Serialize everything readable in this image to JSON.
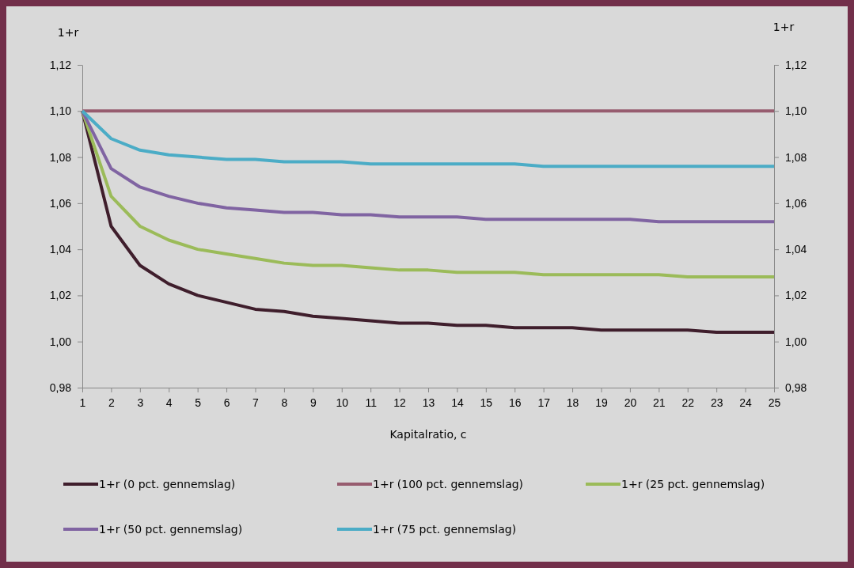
{
  "chart_data": {
    "type": "line",
    "xlabel": "Kapitalratio, c",
    "ylabel": "1+r",
    "y2label": "1+r",
    "x": [
      1,
      2,
      3,
      4,
      5,
      6,
      7,
      8,
      9,
      10,
      11,
      12,
      13,
      14,
      15,
      16,
      17,
      18,
      19,
      20,
      21,
      22,
      23,
      24,
      25
    ],
    "xlim": [
      1,
      25
    ],
    "xticks": [
      1,
      2,
      3,
      4,
      5,
      6,
      7,
      8,
      9,
      10,
      11,
      12,
      13,
      14,
      15,
      16,
      17,
      18,
      19,
      20,
      21,
      22,
      23,
      24,
      25
    ],
    "ylim": [
      0.98,
      1.12
    ],
    "yticks": [
      {
        "value": 0.98,
        "label": "0,98"
      },
      {
        "value": 1.0,
        "label": "1,00"
      },
      {
        "value": 1.02,
        "label": "1,02"
      },
      {
        "value": 1.04,
        "label": "1,04"
      },
      {
        "value": 1.06,
        "label": "1,06"
      },
      {
        "value": 1.08,
        "label": "1,08"
      },
      {
        "value": 1.1,
        "label": "1,10"
      },
      {
        "value": 1.12,
        "label": "1,12"
      }
    ],
    "y2lim": [
      0.98,
      1.12
    ],
    "y2ticks": [
      {
        "value": 0.98,
        "label": "0,98"
      },
      {
        "value": 1.0,
        "label": "1,00"
      },
      {
        "value": 1.02,
        "label": "1,02"
      },
      {
        "value": 1.04,
        "label": "1,04"
      },
      {
        "value": 1.06,
        "label": "1,06"
      },
      {
        "value": 1.08,
        "label": "1,08"
      },
      {
        "value": 1.1,
        "label": "1,10"
      },
      {
        "value": 1.12,
        "label": "1,12"
      }
    ],
    "grid": false,
    "legend": "bottom",
    "marker": "none",
    "line_style": "solid",
    "series": [
      {
        "name": "1+r (0 pct. gennemslag)",
        "color": "#3f1e2c",
        "values": [
          1.1,
          1.05,
          1.033,
          1.025,
          1.02,
          1.017,
          1.014,
          1.013,
          1.011,
          1.01,
          1.009,
          1.008,
          1.008,
          1.007,
          1.007,
          1.006,
          1.006,
          1.006,
          1.005,
          1.005,
          1.005,
          1.005,
          1.004,
          1.004,
          1.004
        ]
      },
      {
        "name": "1+r (100 pct. gennemslag)",
        "color": "#975c6f",
        "values": [
          1.1,
          1.1,
          1.1,
          1.1,
          1.1,
          1.1,
          1.1,
          1.1,
          1.1,
          1.1,
          1.1,
          1.1,
          1.1,
          1.1,
          1.1,
          1.1,
          1.1,
          1.1,
          1.1,
          1.1,
          1.1,
          1.1,
          1.1,
          1.1,
          1.1
        ]
      },
      {
        "name": "1+r (25 pct. gennemslag)",
        "color": "#9bbb59",
        "values": [
          1.1,
          1.063,
          1.05,
          1.044,
          1.04,
          1.038,
          1.036,
          1.034,
          1.033,
          1.033,
          1.032,
          1.031,
          1.031,
          1.03,
          1.03,
          1.03,
          1.029,
          1.029,
          1.029,
          1.029,
          1.029,
          1.028,
          1.028,
          1.028,
          1.028
        ]
      },
      {
        "name": "1+r (50 pct. gennemslag)",
        "color": "#8064a2",
        "values": [
          1.1,
          1.075,
          1.067,
          1.063,
          1.06,
          1.058,
          1.057,
          1.056,
          1.056,
          1.055,
          1.055,
          1.054,
          1.054,
          1.054,
          1.053,
          1.053,
          1.053,
          1.053,
          1.053,
          1.053,
          1.052,
          1.052,
          1.052,
          1.052,
          1.052
        ]
      },
      {
        "name": "1+r (75 pct. gennemslag)",
        "color": "#4bacc6",
        "values": [
          1.1,
          1.088,
          1.083,
          1.081,
          1.08,
          1.079,
          1.079,
          1.078,
          1.078,
          1.078,
          1.077,
          1.077,
          1.077,
          1.077,
          1.077,
          1.077,
          1.076,
          1.076,
          1.076,
          1.076,
          1.076,
          1.076,
          1.076,
          1.076,
          1.076
        ]
      }
    ]
  }
}
